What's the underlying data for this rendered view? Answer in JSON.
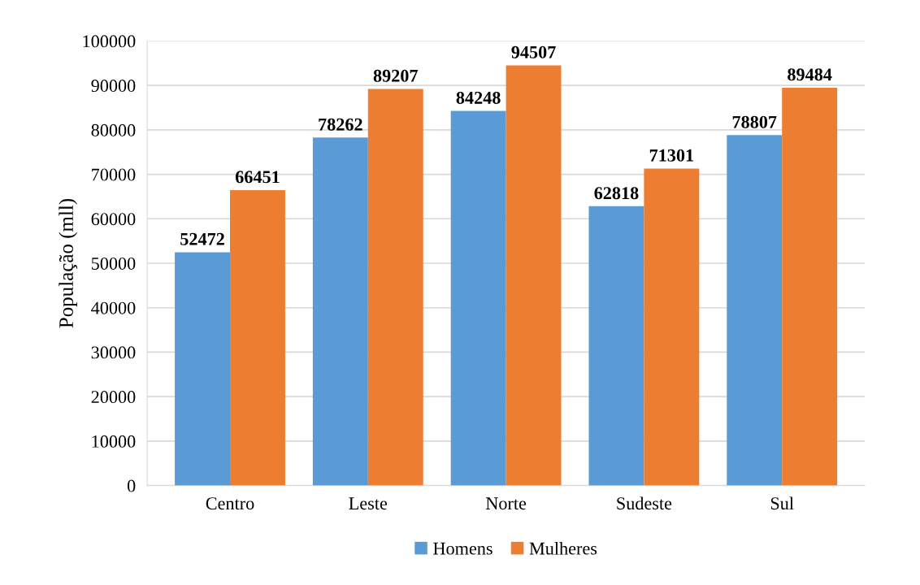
{
  "chart_data": {
    "type": "bar",
    "ylabel": "População (mll)",
    "categories": [
      "Centro",
      "Leste",
      "Norte",
      "Sudeste",
      "Sul"
    ],
    "series": [
      {
        "name": "Homens",
        "color": "#5b9bd5",
        "values": [
          52472,
          78262,
          84248,
          62818,
          78807
        ]
      },
      {
        "name": "Mulheres",
        "color": "#ed7d31",
        "values": [
          66451,
          89207,
          94507,
          71301,
          89484
        ]
      }
    ],
    "ylim": [
      0,
      100000
    ],
    "yticks": [
      0,
      10000,
      20000,
      30000,
      40000,
      50000,
      60000,
      70000,
      80000,
      90000,
      100000
    ],
    "grid": "y",
    "data_labels": true,
    "legend": "bottom"
  }
}
